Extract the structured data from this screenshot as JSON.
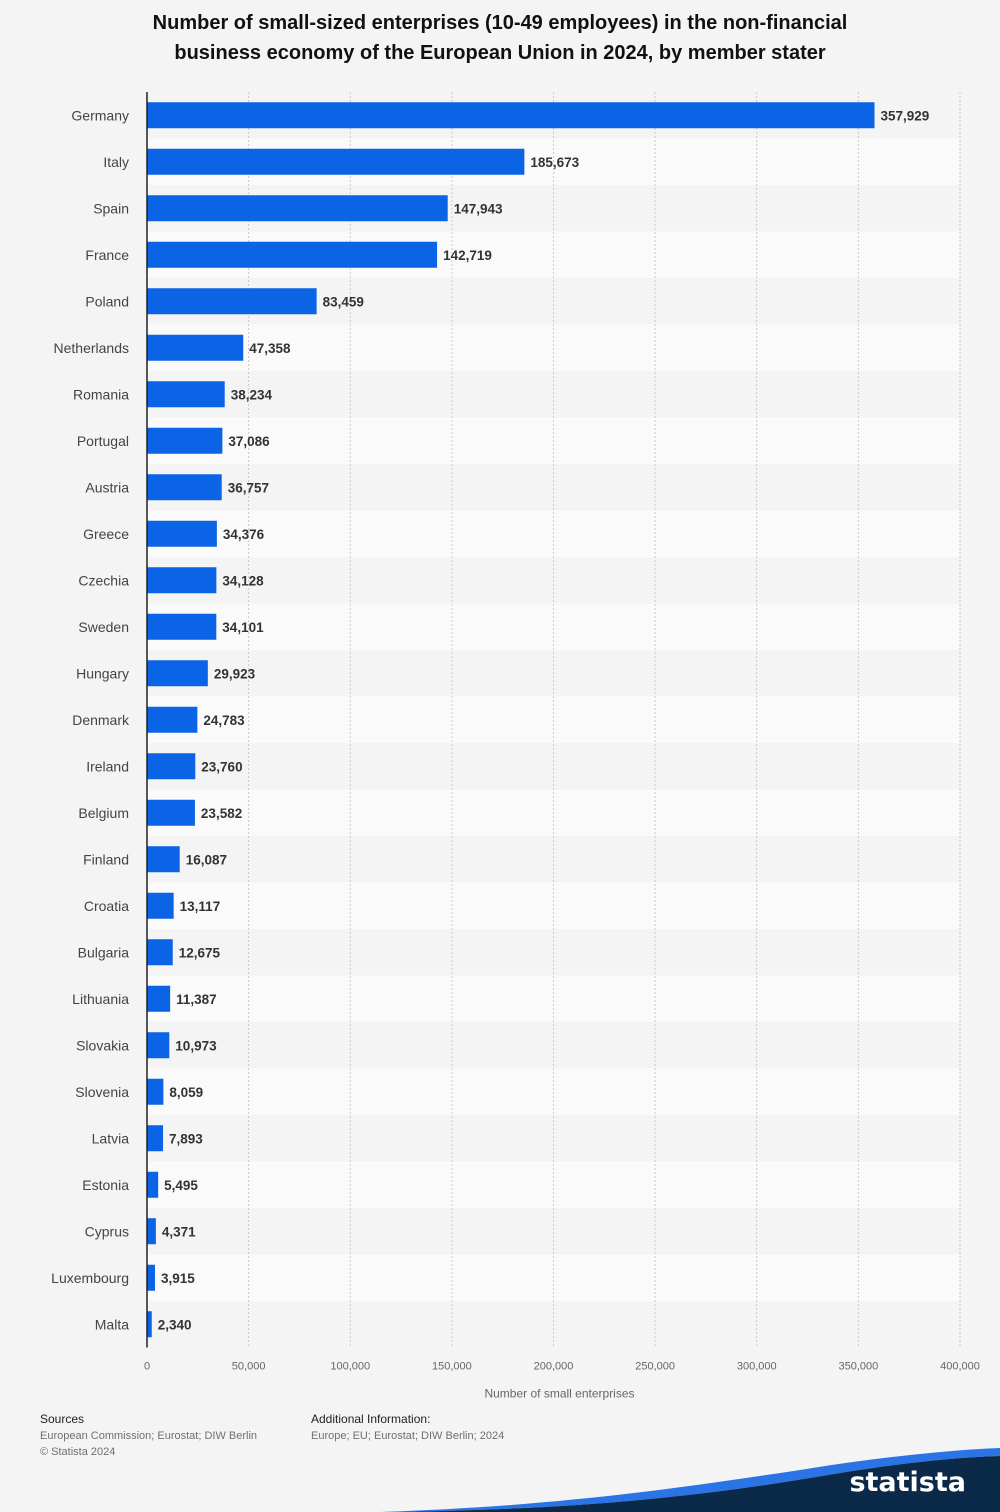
{
  "chart_data": {
    "type": "bar",
    "orientation": "horizontal",
    "title_line1": "Number of small-sized enterprises (10-49 employees) in the non-financial",
    "title_line2": "business economy of the European Union in 2024, by member stater",
    "xlabel": "Number of small enterprises",
    "ylabel": "",
    "xlim": [
      0,
      400000
    ],
    "xticks": [
      0,
      50000,
      100000,
      150000,
      200000,
      250000,
      300000,
      350000,
      400000
    ],
    "xtick_labels": [
      "0",
      "50,000",
      "100,000",
      "150,000",
      "200,000",
      "250,000",
      "300,000",
      "350,000",
      "400,000"
    ],
    "grid": true,
    "categories": [
      "Germany",
      "Italy",
      "Spain",
      "France",
      "Poland",
      "Netherlands",
      "Romania",
      "Portugal",
      "Austria",
      "Greece",
      "Czechia",
      "Sweden",
      "Hungary",
      "Denmark",
      "Ireland",
      "Belgium",
      "Finland",
      "Croatia",
      "Bulgaria",
      "Lithuania",
      "Slovakia",
      "Slovenia",
      "Latvia",
      "Estonia",
      "Cyprus",
      "Luxembourg",
      "Malta"
    ],
    "values": [
      357929,
      185673,
      147943,
      142719,
      83459,
      47358,
      38234,
      37086,
      36757,
      34376,
      34128,
      34101,
      29923,
      24783,
      23760,
      23582,
      16087,
      13117,
      12675,
      11387,
      10973,
      8059,
      7893,
      5495,
      4371,
      3915,
      2340
    ],
    "value_labels": [
      "357,929",
      "185,673",
      "147,943",
      "142,719",
      "83,459",
      "47,358",
      "38,234",
      "37,086",
      "36,757",
      "34,376",
      "34,128",
      "34,101",
      "29,923",
      "24,783",
      "23,760",
      "23,582",
      "16,087",
      "13,117",
      "12,675",
      "11,387",
      "10,973",
      "8,059",
      "7,893",
      "5,495",
      "4,371",
      "3,915",
      "2,340"
    ]
  },
  "colors": {
    "bar": "#0b63e5",
    "stripe": "#fafafa",
    "brand_wave": "#0b2a4a",
    "brand_accent": "#2b74e6"
  },
  "footer": {
    "sources_label": "Sources",
    "sources_text": "European Commission; Eurostat; DIW Berlin",
    "copyright": "© Statista 2024",
    "additional_label": "Additional Information:",
    "additional_text": "Europe; EU; Eurostat; DIW Berlin; 2024"
  },
  "brand": {
    "name": "statista",
    "icon": "statista-logo-icon"
  }
}
